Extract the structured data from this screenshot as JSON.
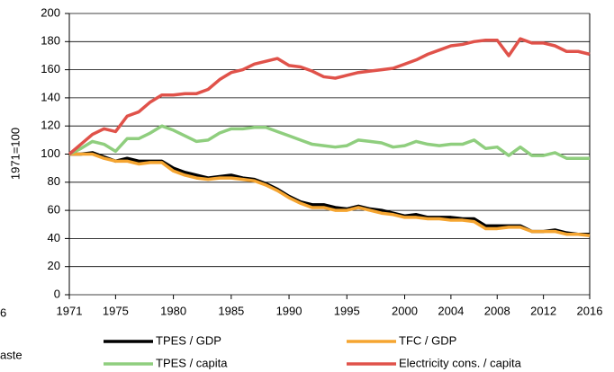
{
  "chart_data": {
    "type": "line",
    "y_label": "1971=100",
    "annotations": [
      "6",
      "aste"
    ],
    "x": [
      1971,
      1972,
      1973,
      1974,
      1975,
      1976,
      1977,
      1978,
      1979,
      1980,
      1981,
      1982,
      1983,
      1984,
      1985,
      1986,
      1987,
      1988,
      1989,
      1990,
      1991,
      1992,
      1993,
      1994,
      1995,
      1996,
      1997,
      1998,
      1999,
      2000,
      2001,
      2002,
      2003,
      2004,
      2005,
      2006,
      2007,
      2008,
      2009,
      2010,
      2011,
      2012,
      2013,
      2014,
      2015,
      2016
    ],
    "xlim": [
      1971,
      2016
    ],
    "xticks": [
      1971,
      1975,
      1980,
      1985,
      1990,
      1995,
      2000,
      2004,
      2008,
      2012,
      2016
    ],
    "ylim": [
      0,
      200
    ],
    "yticks": [
      0,
      20,
      40,
      60,
      80,
      100,
      120,
      140,
      160,
      180,
      200
    ],
    "grid": true,
    "series": [
      {
        "name": "TPES / GDP",
        "color": "#000000",
        "values": [
          100,
          100,
          101,
          98,
          95,
          97,
          95,
          95,
          95,
          90,
          87,
          85,
          83,
          84,
          85,
          83,
          82,
          79,
          75,
          70,
          66,
          64,
          64,
          62,
          61,
          63,
          61,
          60,
          58,
          56,
          57,
          55,
          55,
          55,
          54,
          54,
          49,
          49,
          49,
          49,
          45,
          45,
          46,
          44,
          43,
          43
        ]
      },
      {
        "name": "TFC / GDP",
        "color": "#f5a531",
        "values": [
          100,
          100,
          100,
          97,
          95,
          95,
          93,
          94,
          94,
          88,
          85,
          83,
          82,
          83,
          83,
          82,
          81,
          78,
          74,
          69,
          65,
          62,
          62,
          60,
          60,
          62,
          60,
          58,
          57,
          55,
          55,
          54,
          54,
          53,
          53,
          52,
          47,
          47,
          48,
          48,
          45,
          45,
          45,
          43,
          43,
          42
        ]
      },
      {
        "name": "TPES / capita",
        "color": "#8fce7e",
        "values": [
          100,
          104,
          109,
          107,
          102,
          111,
          111,
          115,
          120,
          117,
          113,
          109,
          110,
          115,
          118,
          118,
          119,
          119,
          116,
          113,
          110,
          107,
          106,
          105,
          106,
          110,
          109,
          108,
          105,
          106,
          109,
          107,
          106,
          107,
          107,
          110,
          104,
          105,
          99,
          105,
          99,
          99,
          101,
          97,
          97,
          97
        ]
      },
      {
        "name": "Electricity cons. / capita",
        "color": "#e0524a",
        "values": [
          100,
          107,
          114,
          118,
          116,
          127,
          130,
          137,
          142,
          142,
          143,
          143,
          146,
          153,
          158,
          160,
          164,
          166,
          168,
          163,
          162,
          159,
          155,
          154,
          156,
          158,
          159,
          160,
          161,
          164,
          167,
          171,
          174,
          177,
          178,
          180,
          181,
          181,
          170,
          182,
          179,
          179,
          177,
          173,
          173,
          171
        ]
      }
    ]
  }
}
